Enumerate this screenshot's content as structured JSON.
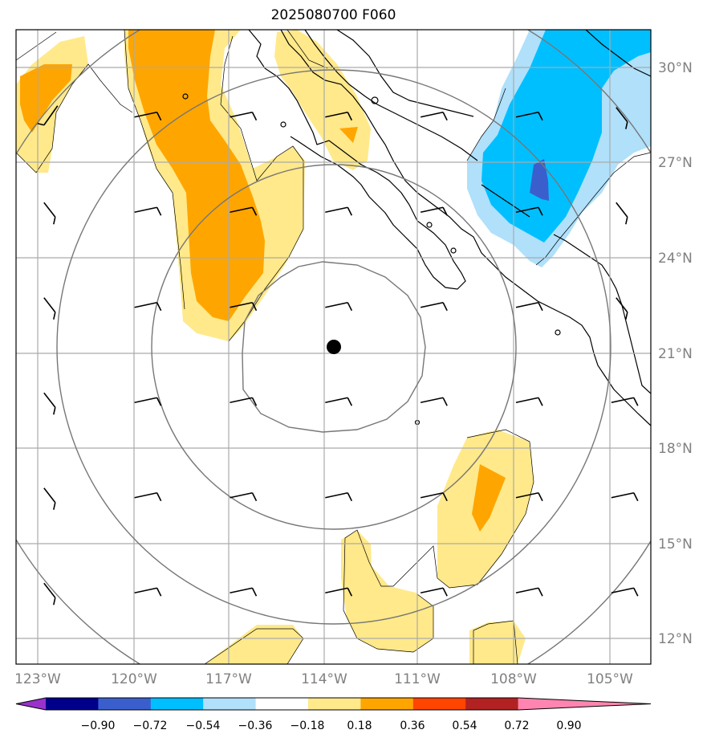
{
  "title": "2025080700 F060",
  "lon_labels": [
    "123°W",
    "120°W",
    "117°W",
    "114°W",
    "111°W",
    "108°W",
    "105°W"
  ],
  "lat_labels": [
    "30°N",
    "27°N",
    "24°N",
    "21°N",
    "18°N",
    "15°N",
    "12°N"
  ],
  "colorbar": {
    "tick_labels": [
      "−0.90",
      "−0.72",
      "−0.54",
      "−0.36",
      "−0.18",
      "0.18",
      "0.36",
      "0.54",
      "0.72",
      "0.90"
    ],
    "colors": [
      "#9933cc",
      "#00008b",
      "#3a5fcd",
      "#00bfff",
      "#b0e0fa",
      "#ffffff",
      "#ffe98a",
      "#ffa500",
      "#ff4500",
      "#b22222",
      "#ff85b0"
    ]
  },
  "fill_colors": {
    "light_yellow": "#ffe98a",
    "orange": "#ffa500",
    "light_blue": "#b0e0fa",
    "deep_sky": "#00bfff",
    "royal_blue": "#3a5fcd"
  },
  "center_marker": {
    "lon": -113.7,
    "lat": 21.2
  },
  "wind_barbs": {
    "lons": [
      -122.5,
      -119.5,
      -116.5,
      -113.5,
      -110.5,
      -107.5,
      -104.5
    ],
    "lats": [
      28.5,
      25.5,
      22.5,
      19.5,
      16.5,
      13.5
    ]
  }
}
